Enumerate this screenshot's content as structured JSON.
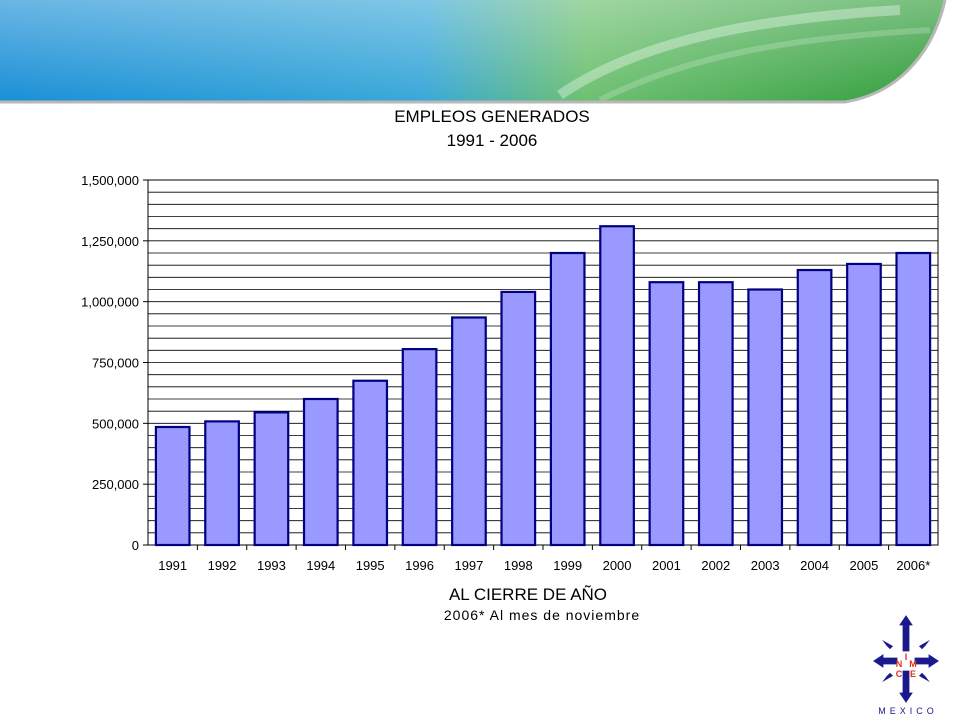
{
  "chart_data": {
    "type": "bar",
    "title": "EMPLEOS GENERADOS",
    "subtitle": "1991 - 2006",
    "xlabel": "AL CIERRE DE AÑO",
    "xlabel_note": "2006* Al mes de noviembre",
    "ylabel": "",
    "ylim": [
      0,
      1500000
    ],
    "y_ticks": [
      "0",
      "250,000",
      "500,000",
      "750,000",
      "1,000,000",
      "1,250,000",
      "1,500,000"
    ],
    "grid": true,
    "categories": [
      "1991",
      "1992",
      "1993",
      "1994",
      "1995",
      "1996",
      "1997",
      "1998",
      "1999",
      "2000",
      "2001",
      "2002",
      "2003",
      "2004",
      "2005",
      "2006*"
    ],
    "values": [
      485000,
      508000,
      545000,
      600000,
      675000,
      805000,
      935000,
      1040000,
      1200000,
      1310000,
      1080000,
      1080000,
      1050000,
      1130000,
      1155000,
      1200000
    ],
    "bar_color": "#9999ff",
    "bar_edge_color": "#000080"
  },
  "logo": {
    "letters": [
      "I",
      "N",
      "M",
      "C",
      "E"
    ],
    "word": "MEXICO",
    "primary_color": "#1a1a8c",
    "accent_color": "#e0301e"
  }
}
